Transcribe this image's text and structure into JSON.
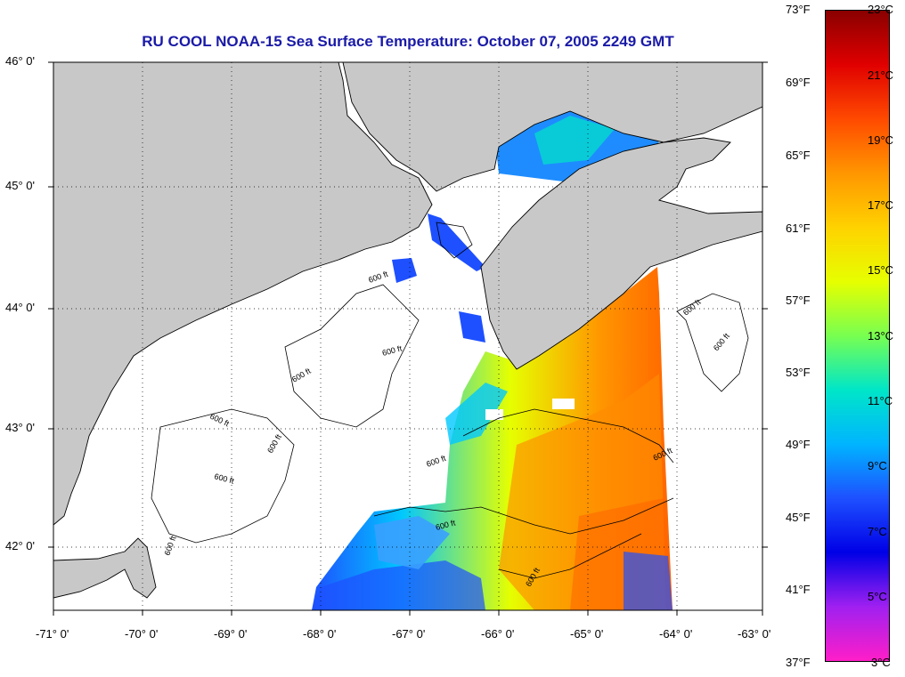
{
  "title": "RU COOL  NOAA-15  Sea Surface Temperature:  October 07, 2005 2249 GMT",
  "map": {
    "lon_ticks": [
      "-71° 0'",
      "-70° 0'",
      "-69° 0'",
      "-68° 0'",
      "-67° 0'",
      "-66° 0'",
      "-65° 0'",
      "-64° 0'",
      "-63° 0'"
    ],
    "lat_ticks": [
      "46° 0'",
      "45° 0'",
      "44° 0'",
      "43° 0'",
      "42° 0'"
    ],
    "contour_label": "600 ft",
    "colors": {
      "land": "#c8c8c8",
      "nodata_water": "#ffffff",
      "coast": "#000000",
      "gridline": "#000000"
    }
  },
  "colorbar": {
    "fahrenheit_labels": [
      "73°F",
      "69°F",
      "65°F",
      "61°F",
      "57°F",
      "53°F",
      "49°F",
      "45°F",
      "41°F",
      "37°F"
    ],
    "celsius_labels": [
      "23°C",
      "21°C",
      "19°C",
      "17°C",
      "15°C",
      "13°C",
      "11°C",
      "9°C",
      "7°C",
      "5°C",
      "3°C"
    ],
    "colors_top_to_bottom": [
      "#8a0000",
      "#e00000",
      "#ff4a00",
      "#ff9600",
      "#ffd200",
      "#e6ff00",
      "#78ff50",
      "#00e6c8",
      "#00b4ff",
      "#1e50ff",
      "#0000e6",
      "#a020f0",
      "#ff1ec8"
    ]
  }
}
